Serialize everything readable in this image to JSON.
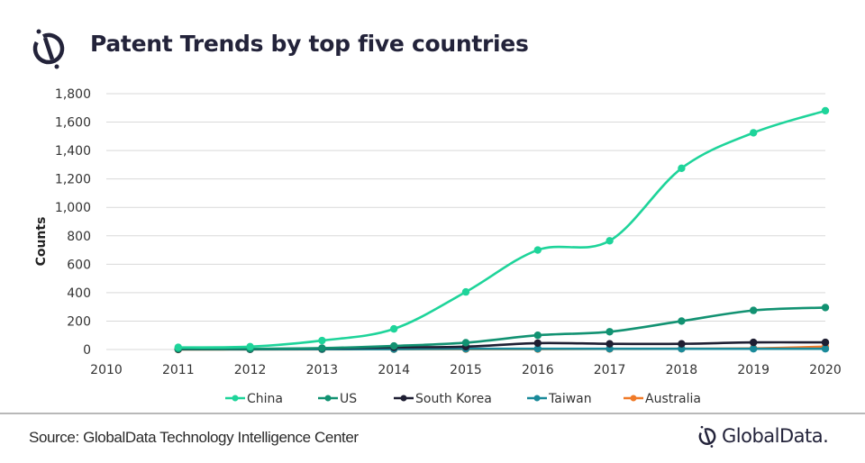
{
  "header": {
    "title": "Patent Trends by top five countries",
    "logo_icon": "globaldata-logo-icon"
  },
  "footer": {
    "source": "Source: GlobalData Technology Intelligence Center",
    "brand": "GlobalData."
  },
  "chart_data": {
    "type": "line",
    "title": "Patent Trends by top five countries",
    "xlabel": "",
    "ylabel": "Counts",
    "x": [
      2011,
      2012,
      2013,
      2014,
      2015,
      2016,
      2017,
      2018,
      2019,
      2020
    ],
    "xticks": [
      "2010",
      "2011",
      "2012",
      "2013",
      "2014",
      "2015",
      "2016",
      "2017",
      "2018",
      "2019",
      "2020"
    ],
    "xlim": [
      2010,
      2020
    ],
    "ylim": [
      0,
      1800
    ],
    "yticks": [
      "0",
      "200",
      "400",
      "600",
      "800",
      "1,000",
      "1,200",
      "1,400",
      "1,600",
      "1,800"
    ],
    "ytick_values": [
      0,
      200,
      400,
      600,
      800,
      1000,
      1200,
      1400,
      1600,
      1800
    ],
    "grid": true,
    "legend_position": "bottom",
    "series": [
      {
        "name": "China",
        "color": "#1ed49a",
        "values": [
          15,
          20,
          63,
          145,
          405,
          700,
          765,
          1275,
          1525,
          1680
        ]
      },
      {
        "name": "US",
        "color": "#129272",
        "values": [
          5,
          5,
          10,
          25,
          48,
          100,
          125,
          200,
          275,
          295
        ]
      },
      {
        "name": "South Korea",
        "color": "#1f1f33",
        "values": [
          2,
          3,
          8,
          15,
          20,
          45,
          40,
          40,
          50,
          50
        ]
      },
      {
        "name": "Taiwan",
        "color": "#1a8a9a",
        "values": [
          1,
          1,
          2,
          3,
          5,
          5,
          5,
          5,
          5,
          5
        ]
      },
      {
        "name": "Australia",
        "color": "#f07a28",
        "values": [
          0,
          1,
          1,
          2,
          3,
          3,
          4,
          5,
          8,
          20
        ]
      }
    ]
  }
}
